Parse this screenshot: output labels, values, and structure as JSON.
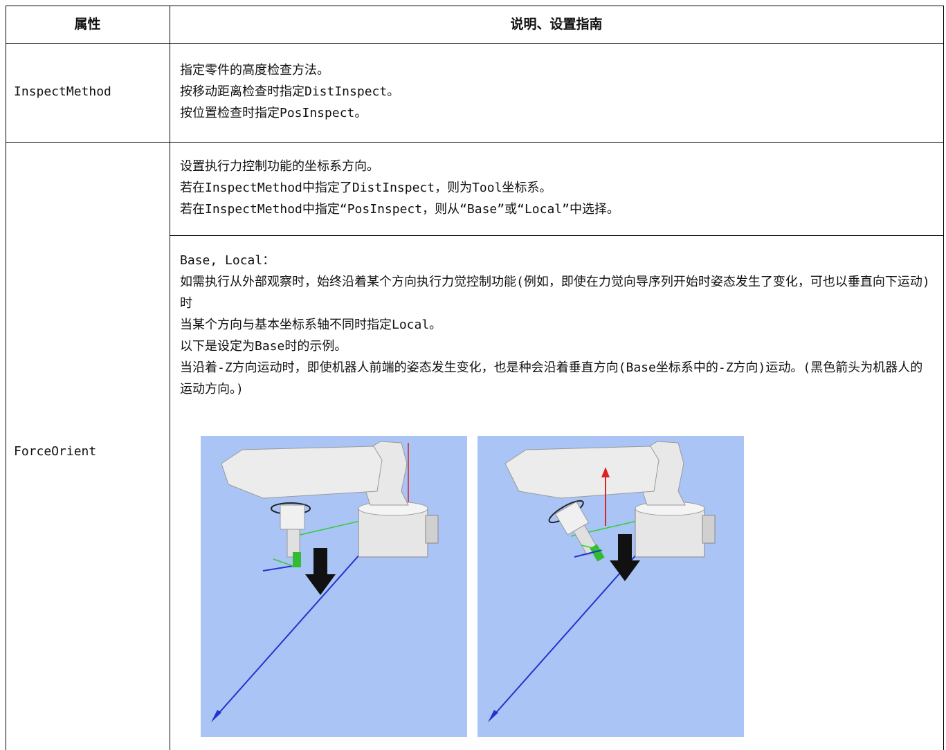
{
  "table": {
    "headers": [
      "属性",
      "说明、设置指南"
    ],
    "rows": [
      {
        "property": "InspectMethod",
        "lines": [
          "指定零件的高度检查方法。",
          "按移动距离检查时指定DistInspect。",
          "按位置检查时指定PosInspect。"
        ]
      },
      {
        "property": "ForceOrient",
        "blocks": [
          [
            "设置执行力控制功能的坐标系方向。",
            "若在InspectMethod中指定了DistInspect，则为Tool坐标系。",
            "若在InspectMethod中指定“PosInspect，则从“Base”或“Local”中选择。"
          ],
          [
            "Base, Local：",
            "如需执行从外部观察时，始终沿着某个方向执行力觉控制功能(例如，即使在力觉向导序列开始时姿态发生了变化，可也以垂直向下运动)时",
            "当某个方向与基本坐标系轴不同时指定Local。",
            "以下是设定为Base时的示例。",
            "当沿着-Z方向运动时，即使机器人前端的姿态发生变化，也是种会沿着垂直方向(Base坐标系中的-Z方向)运动。(黑色箭头为机器人的运动方向。)"
          ]
        ]
      }
    ]
  }
}
